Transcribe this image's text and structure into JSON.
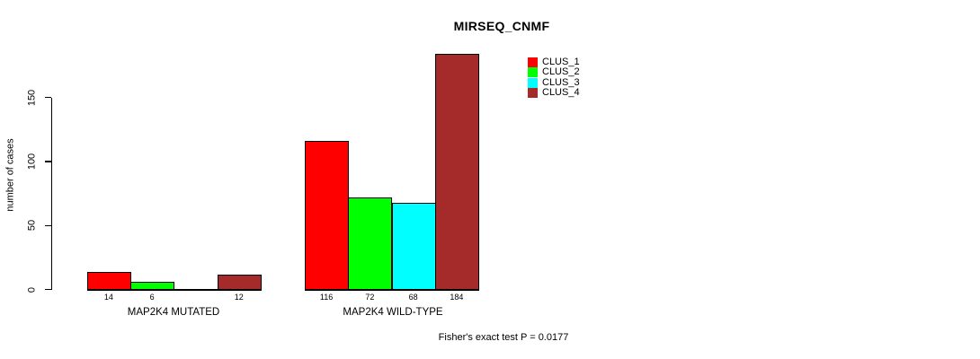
{
  "chart_data": {
    "type": "bar",
    "title": "MIRSEQ_CNMF",
    "xlabel": "",
    "ylabel": "number of cases",
    "categories": [
      "MAP2K4 MUTATED",
      "MAP2K4 WILD-TYPE"
    ],
    "series": [
      {
        "name": "CLUS_1",
        "color": "#FF0000",
        "values": [
          14,
          116
        ]
      },
      {
        "name": "CLUS_2",
        "color": "#00FF00",
        "values": [
          6,
          72
        ]
      },
      {
        "name": "CLUS_3",
        "color": "#00FFFF",
        "values": [
          0,
          68
        ]
      },
      {
        "name": "CLUS_4",
        "color": "#A52A2A",
        "values": [
          12,
          184
        ]
      }
    ],
    "bar_value_labels": [
      [
        "14",
        "6",
        "",
        "12"
      ],
      [
        "116",
        "72",
        "68",
        "184"
      ]
    ],
    "y_ticks": [
      0,
      50,
      100,
      150
    ],
    "ylim": [
      0,
      184
    ],
    "grid": false,
    "legend": {
      "position": "top-right-of-plot",
      "entries": [
        "CLUS_1",
        "CLUS_2",
        "CLUS_3",
        "CLUS_4"
      ]
    },
    "annotation": "Fisher's exact test P = 0.0177",
    "axis_color": "#000000",
    "bar_border_color": "#000000",
    "background_color": "#FFFFFF"
  }
}
